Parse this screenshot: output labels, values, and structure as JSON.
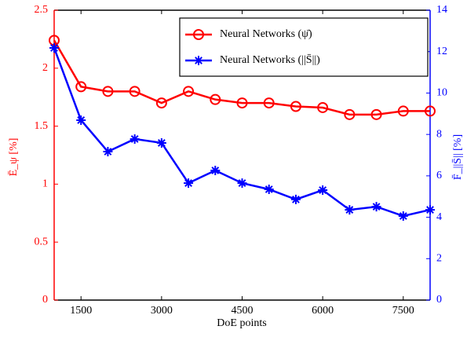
{
  "chart_data": {
    "type": "line",
    "x_label": "DoE points",
    "y_label": "Ē_ψ [%]",
    "y2_label": "F̄_||S̄|| [%]",
    "x": [
      1000,
      1500,
      2000,
      2500,
      3000,
      3500,
      4000,
      4500,
      5000,
      5500,
      6000,
      6500,
      7000,
      7500,
      8000
    ],
    "series": [
      {
        "name": "Neural Networks (ψ̄)",
        "color": "#ff0000",
        "marker": "circle",
        "axis": "y",
        "values": [
          2.24,
          1.84,
          1.8,
          1.8,
          1.7,
          1.8,
          1.73,
          1.7,
          1.7,
          1.67,
          1.66,
          1.6,
          1.6,
          1.63,
          1.63
        ]
      },
      {
        "name": "Neural Networks (||S̄||)",
        "color": "#0000ff",
        "marker": "asterisk",
        "axis": "y2",
        "values": [
          12.18,
          8.69,
          7.17,
          7.78,
          7.59,
          5.65,
          6.26,
          5.65,
          5.35,
          4.86,
          5.31,
          4.36,
          4.51,
          4.06,
          4.36
        ]
      }
    ],
    "xlim": [
      1000,
      8000
    ],
    "xticks": [
      1500,
      3000,
      4500,
      6000,
      7500
    ],
    "ylim": [
      0,
      2.5
    ],
    "yticks": [
      0,
      0.5,
      1,
      1.5,
      2,
      2.5
    ],
    "y2lim": [
      0,
      14
    ],
    "y2ticks": [
      0,
      2,
      4,
      6,
      8,
      10,
      12,
      14
    ],
    "legend": "upper right"
  }
}
